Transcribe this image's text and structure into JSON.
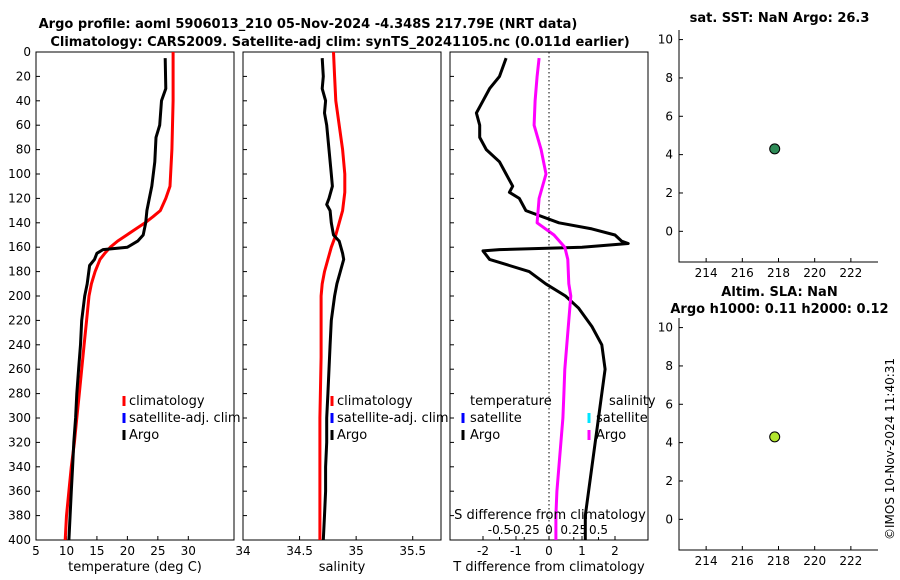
{
  "title_line1": "Argo profile: aoml 5906013_210 05-Nov-2024 -4.348S 217.79E (NRT data)",
  "title_line2": "Climatology: CARS2009. Satellite-adj clim: synTS_20241105.nc (0.011d earlier)",
  "watermark": "©IMOS 10-Nov-2024 11:40:31",
  "colors": {
    "climatology": "#ff0000",
    "satellite": "#0000ff",
    "argo": "#000000",
    "salinity_diff": "#ff00ff",
    "salinity_sat": "#00e5ff",
    "sst_marker": "#2e8b57",
    "sla_marker": "#b2e62e"
  },
  "chart_data": [
    {
      "id": "temperature",
      "type": "line",
      "xlabel": "temperature (deg C)",
      "xlim": [
        5,
        37.5
      ],
      "ylim": [
        400,
        0
      ],
      "xticks": [
        5,
        10,
        15,
        20,
        25,
        30
      ],
      "yticks": [
        0,
        20,
        40,
        60,
        80,
        100,
        120,
        140,
        160,
        180,
        200,
        220,
        240,
        260,
        280,
        300,
        320,
        340,
        360,
        380,
        400
      ],
      "legend": [
        "climatology",
        "satellite-adj. clim",
        "Argo"
      ],
      "series": [
        {
          "name": "climatology",
          "color": "climatology",
          "points": [
            [
              27.5,
              0
            ],
            [
              27.5,
              40
            ],
            [
              27.3,
              80
            ],
            [
              27,
              110
            ],
            [
              26.3,
              120
            ],
            [
              25.4,
              130
            ],
            [
              24.2,
              135
            ],
            [
              22.9,
              140
            ],
            [
              21.4,
              145
            ],
            [
              19.9,
              150
            ],
            [
              18.4,
              155
            ],
            [
              17.2,
              160
            ],
            [
              16.3,
              165
            ],
            [
              15.5,
              170
            ],
            [
              14.7,
              180
            ],
            [
              14.1,
              190
            ],
            [
              13.7,
              200
            ],
            [
              13.3,
              220
            ],
            [
              12.9,
              240
            ],
            [
              12.5,
              260
            ],
            [
              12.1,
              280
            ],
            [
              11.7,
              300
            ],
            [
              11.3,
              320
            ],
            [
              10.8,
              340
            ],
            [
              10.4,
              360
            ],
            [
              10,
              380
            ],
            [
              9.8,
              400
            ]
          ]
        },
        {
          "name": "Argo",
          "color": "argo",
          "points": [
            [
              26.2,
              5
            ],
            [
              26.3,
              30
            ],
            [
              25.6,
              40
            ],
            [
              25.3,
              60
            ],
            [
              24.7,
              70
            ],
            [
              24.5,
              90
            ],
            [
              24,
              110
            ],
            [
              23.6,
              120
            ],
            [
              23.2,
              130
            ],
            [
              23,
              140
            ],
            [
              22.6,
              150
            ],
            [
              21.7,
              155
            ],
            [
              20,
              160
            ],
            [
              16,
              162
            ],
            [
              15,
              165
            ],
            [
              14.6,
              170
            ],
            [
              13.8,
              175
            ],
            [
              13.4,
              190
            ],
            [
              13,
              200
            ],
            [
              12.5,
              220
            ],
            [
              12.3,
              240
            ],
            [
              12,
              260
            ],
            [
              11.7,
              280
            ],
            [
              11.5,
              300
            ],
            [
              11.2,
              320
            ],
            [
              11,
              340
            ],
            [
              10.8,
              360
            ],
            [
              10.6,
              380
            ],
            [
              10.4,
              400
            ]
          ]
        }
      ]
    },
    {
      "id": "salinity",
      "type": "line",
      "xlabel": "salinity",
      "xlim": [
        34,
        35.75
      ],
      "ylim": [
        400,
        0
      ],
      "xticks": [
        34,
        34.5,
        35,
        35.5
      ],
      "legend": [
        "climatology",
        "satellite-adj. clim",
        "Argo"
      ],
      "series": [
        {
          "name": "climatology",
          "color": "climatology",
          "points": [
            [
              34.8,
              0
            ],
            [
              34.81,
              20
            ],
            [
              34.82,
              40
            ],
            [
              34.85,
              60
            ],
            [
              34.88,
              80
            ],
            [
              34.9,
              100
            ],
            [
              34.9,
              115
            ],
            [
              34.88,
              130
            ],
            [
              34.85,
              140
            ],
            [
              34.82,
              150
            ],
            [
              34.78,
              160
            ],
            [
              34.75,
              170
            ],
            [
              34.72,
              180
            ],
            [
              34.7,
              190
            ],
            [
              34.69,
              200
            ],
            [
              34.69,
              250
            ],
            [
              34.68,
              300
            ],
            [
              34.68,
              350
            ],
            [
              34.68,
              400
            ]
          ]
        },
        {
          "name": "Argo",
          "color": "argo",
          "points": [
            [
              34.7,
              5
            ],
            [
              34.71,
              20
            ],
            [
              34.7,
              30
            ],
            [
              34.73,
              40
            ],
            [
              34.72,
              50
            ],
            [
              34.74,
              60
            ],
            [
              34.76,
              80
            ],
            [
              34.78,
              100
            ],
            [
              34.79,
              110
            ],
            [
              34.76,
              120
            ],
            [
              34.74,
              125
            ],
            [
              34.77,
              130
            ],
            [
              34.78,
              140
            ],
            [
              34.8,
              150
            ],
            [
              34.85,
              155
            ],
            [
              34.88,
              165
            ],
            [
              34.89,
              170
            ],
            [
              34.86,
              180
            ],
            [
              34.83,
              190
            ],
            [
              34.81,
              200
            ],
            [
              34.78,
              220
            ],
            [
              34.77,
              240
            ],
            [
              34.76,
              260
            ],
            [
              34.75,
              280
            ],
            [
              34.74,
              300
            ],
            [
              34.74,
              320
            ],
            [
              34.73,
              340
            ],
            [
              34.73,
              360
            ],
            [
              34.72,
              380
            ],
            [
              34.71,
              400
            ]
          ]
        }
      ]
    },
    {
      "id": "differences",
      "type": "line",
      "xlabel": "T difference from climatology",
      "xlabel_top": "S difference from climatology",
      "xlim": [
        -3,
        3
      ],
      "ylim": [
        400,
        0
      ],
      "xticks": [
        -2,
        -1,
        0,
        1,
        2
      ],
      "s_xlim": [
        -1,
        1
      ],
      "s_ticks": [
        -0.5,
        -0.25,
        0,
        0.25,
        0.5
      ],
      "s_ticklabels": [
        "-0.5",
        "-0.25",
        "0",
        "0.25",
        "0.5"
      ],
      "legend_t": [
        "temperature",
        "satellite",
        "Argo"
      ],
      "legend_s": [
        "salinity",
        "satellite",
        "Argo"
      ],
      "series": [
        {
          "name": "T difference",
          "color": "argo",
          "points": [
            [
              -1.3,
              5
            ],
            [
              -1.5,
              20
            ],
            [
              -1.8,
              30
            ],
            [
              -2,
              40
            ],
            [
              -2.2,
              50
            ],
            [
              -2.1,
              60
            ],
            [
              -2.1,
              70
            ],
            [
              -1.9,
              80
            ],
            [
              -1.5,
              90
            ],
            [
              -1.3,
              100
            ],
            [
              -1.1,
              110
            ],
            [
              -1.2,
              115
            ],
            [
              -0.9,
              120
            ],
            [
              -0.7,
              130
            ],
            [
              0.3,
              140
            ],
            [
              1.3,
              145
            ],
            [
              2,
              150
            ],
            [
              2.2,
              155
            ],
            [
              2.4,
              157
            ],
            [
              1,
              160
            ],
            [
              -1.5,
              162
            ],
            [
              -2,
              163
            ],
            [
              -1.8,
              170
            ],
            [
              -1.2,
              175
            ],
            [
              -0.6,
              180
            ],
            [
              -0.1,
              190
            ],
            [
              0.5,
              200
            ],
            [
              0.9,
              210
            ],
            [
              1.3,
              225
            ],
            [
              1.6,
              240
            ],
            [
              1.7,
              260
            ],
            [
              1.6,
              280
            ],
            [
              1.5,
              300
            ],
            [
              1.4,
              320
            ],
            [
              1.3,
              340
            ],
            [
              1.2,
              360
            ],
            [
              1.1,
              380
            ],
            [
              1.1,
              400
            ]
          ]
        },
        {
          "name": "S difference",
          "color": "salinity_diff",
          "axis": "s",
          "points": [
            [
              -0.1,
              5
            ],
            [
              -0.12,
              20
            ],
            [
              -0.14,
              40
            ],
            [
              -0.15,
              60
            ],
            [
              -0.08,
              80
            ],
            [
              -0.03,
              100
            ],
            [
              -0.1,
              120
            ],
            [
              -0.12,
              140
            ],
            [
              0.05,
              150
            ],
            [
              0.16,
              160
            ],
            [
              0.19,
              170
            ],
            [
              0.2,
              190
            ],
            [
              0.22,
              200
            ],
            [
              0.2,
              220
            ],
            [
              0.18,
              240
            ],
            [
              0.16,
              260
            ],
            [
              0.15,
              280
            ],
            [
              0.14,
              300
            ],
            [
              0.12,
              320
            ],
            [
              0.1,
              340
            ],
            [
              0.08,
              360
            ],
            [
              0.07,
              380
            ],
            [
              0.07,
              400
            ]
          ]
        }
      ]
    },
    {
      "id": "sst",
      "type": "scatter",
      "title": "sat. SST: NaN Argo: 26.3",
      "xlim": [
        212.5,
        223.5
      ],
      "ylim": [
        -1.6,
        10.5
      ],
      "xticks": [
        214,
        216,
        218,
        220,
        222
      ],
      "yticks": [
        0,
        2,
        4,
        6,
        8,
        10
      ],
      "points": [
        [
          217.79,
          4.3
        ]
      ]
    },
    {
      "id": "sla",
      "type": "scatter",
      "title": "Altim. SLA: NaN",
      "subtitle": "Argo h1000: 0.11 h2000: 0.12",
      "xlim": [
        212.5,
        223.5
      ],
      "ylim": [
        -1.6,
        10.5
      ],
      "xticks": [
        214,
        216,
        218,
        220,
        222
      ],
      "yticks": [
        0,
        2,
        4,
        6,
        8,
        10
      ],
      "points": [
        [
          217.79,
          4.3
        ]
      ]
    }
  ]
}
